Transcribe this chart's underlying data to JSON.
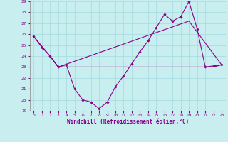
{
  "xlabel": "Windchill (Refroidissement éolien,°C)",
  "background_color": "#c8eef0",
  "grid_color": "#aadde0",
  "line_color": "#880088",
  "xlim": [
    -0.5,
    23.5
  ],
  "ylim": [
    19,
    29
  ],
  "yticks": [
    19,
    20,
    21,
    22,
    23,
    24,
    25,
    26,
    27,
    28,
    29
  ],
  "xticks": [
    0,
    1,
    2,
    3,
    4,
    5,
    6,
    7,
    8,
    9,
    10,
    11,
    12,
    13,
    14,
    15,
    16,
    17,
    18,
    19,
    20,
    21,
    22,
    23
  ],
  "line1_x": [
    0,
    1,
    2,
    3,
    4,
    5,
    6,
    7,
    8,
    9,
    10,
    11,
    12,
    13,
    14,
    15,
    16,
    17,
    18,
    19,
    20,
    21,
    22,
    23
  ],
  "line1_y": [
    25.8,
    24.8,
    24.0,
    23.0,
    23.2,
    21.0,
    20.0,
    19.8,
    19.2,
    19.8,
    21.2,
    22.2,
    23.3,
    24.4,
    25.4,
    26.6,
    27.8,
    27.2,
    27.6,
    29.0,
    26.5,
    23.0,
    23.1,
    23.2
  ],
  "line2_x": [
    0,
    2,
    3,
    10,
    11,
    12,
    13,
    14,
    15,
    16,
    17,
    18,
    19,
    20,
    21,
    22,
    23
  ],
  "line2_y": [
    25.8,
    24.0,
    23.0,
    23.0,
    23.0,
    23.0,
    23.0,
    23.0,
    23.0,
    23.0,
    23.0,
    23.0,
    23.0,
    23.0,
    23.0,
    23.0,
    23.2
  ],
  "line3_x": [
    2,
    3,
    19,
    23
  ],
  "line3_y": [
    24.0,
    23.0,
    27.2,
    23.2
  ]
}
